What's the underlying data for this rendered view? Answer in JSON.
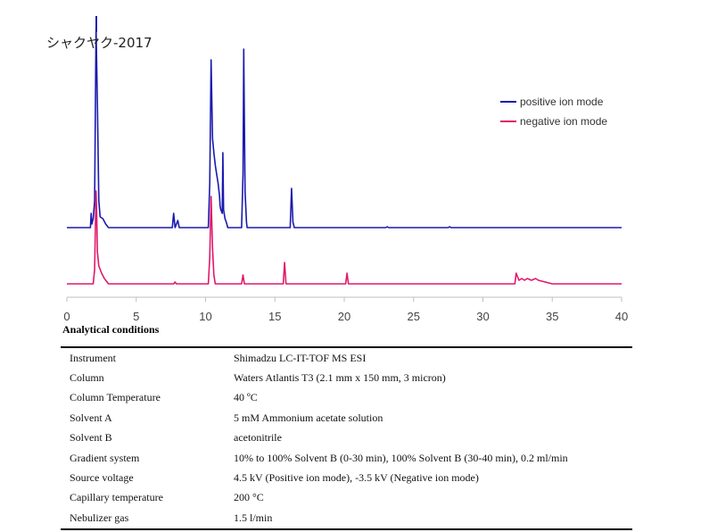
{
  "chart_data": {
    "type": "line",
    "title": "シャクヤク-2017",
    "xlabel": "",
    "ylabel": "",
    "xlim": [
      0,
      40
    ],
    "x_ticks": [
      "0",
      "5",
      "10",
      "15",
      "20",
      "25",
      "30",
      "35",
      "40"
    ],
    "legend_position": "top-right",
    "series": [
      {
        "name": "positive ion mode",
        "color": "#1a1aaf",
        "points": [
          [
            0,
            0
          ],
          [
            1.7,
            0
          ],
          [
            1.75,
            0.08
          ],
          [
            1.8,
            0.02
          ],
          [
            1.9,
            0.05
          ],
          [
            2.0,
            0.15
          ],
          [
            2.1,
            1.12
          ],
          [
            2.2,
            0.7
          ],
          [
            2.3,
            0.15
          ],
          [
            2.4,
            0.06
          ],
          [
            2.6,
            0.05
          ],
          [
            2.8,
            0.02
          ],
          [
            3.0,
            0
          ],
          [
            7.6,
            0
          ],
          [
            7.7,
            0.08
          ],
          [
            7.8,
            0
          ],
          [
            8.0,
            0.04
          ],
          [
            8.1,
            0
          ],
          [
            10.2,
            0
          ],
          [
            10.3,
            0.25
          ],
          [
            10.4,
            0.94
          ],
          [
            10.5,
            0.5
          ],
          [
            10.6,
            0.42
          ],
          [
            10.7,
            0.35
          ],
          [
            10.8,
            0.3
          ],
          [
            10.9,
            0.25
          ],
          [
            11.0,
            0.18
          ],
          [
            11.05,
            0.12
          ],
          [
            11.1,
            0.1
          ],
          [
            11.2,
            0.08
          ],
          [
            11.25,
            0.42
          ],
          [
            11.3,
            0.1
          ],
          [
            11.4,
            0.05
          ],
          [
            11.5,
            0.03
          ],
          [
            11.6,
            0
          ],
          [
            12.6,
            0
          ],
          [
            12.7,
            0.3
          ],
          [
            12.75,
            1.0
          ],
          [
            12.85,
            0.2
          ],
          [
            12.95,
            0.03
          ],
          [
            13.0,
            0
          ],
          [
            16.1,
            0
          ],
          [
            16.2,
            0.22
          ],
          [
            16.3,
            0.03
          ],
          [
            16.4,
            0
          ],
          [
            23.0,
            0
          ],
          [
            23.1,
            0.005
          ],
          [
            23.2,
            0
          ],
          [
            27.5,
            0
          ],
          [
            27.6,
            0.005
          ],
          [
            27.7,
            0
          ],
          [
            40,
            0
          ]
        ]
      },
      {
        "name": "negative ion mode",
        "color": "#e0196b",
        "points": [
          [
            0,
            0
          ],
          [
            1.9,
            0
          ],
          [
            2.0,
            0.08
          ],
          [
            2.1,
            0.52
          ],
          [
            2.15,
            0.4
          ],
          [
            2.2,
            0.18
          ],
          [
            2.3,
            0.1
          ],
          [
            2.5,
            0.06
          ],
          [
            2.7,
            0.03
          ],
          [
            3.0,
            0
          ],
          [
            7.7,
            0
          ],
          [
            7.8,
            0.01
          ],
          [
            7.9,
            0
          ],
          [
            10.2,
            0
          ],
          [
            10.3,
            0.15
          ],
          [
            10.4,
            0.49
          ],
          [
            10.5,
            0.2
          ],
          [
            10.6,
            0.05
          ],
          [
            10.7,
            0
          ],
          [
            12.6,
            0
          ],
          [
            12.7,
            0.05
          ],
          [
            12.8,
            0
          ],
          [
            15.6,
            0
          ],
          [
            15.7,
            0.12
          ],
          [
            15.8,
            0
          ],
          [
            20.1,
            0
          ],
          [
            20.2,
            0.06
          ],
          [
            20.3,
            0
          ],
          [
            32.3,
            0
          ],
          [
            32.4,
            0.06
          ],
          [
            32.6,
            0.02
          ],
          [
            32.8,
            0.03
          ],
          [
            33.0,
            0.02
          ],
          [
            33.2,
            0.03
          ],
          [
            33.5,
            0.02
          ],
          [
            33.8,
            0.03
          ],
          [
            34.0,
            0.02
          ],
          [
            34.5,
            0.01
          ],
          [
            35.0,
            0
          ],
          [
            40,
            0
          ]
        ]
      }
    ]
  },
  "conditions": {
    "heading": "Analytical conditions",
    "rows": [
      {
        "label": "Instrument",
        "value": "Shimadzu LC-IT-TOF MS ESI"
      },
      {
        "label": "Column",
        "value": "Waters Atlantis T3 (2.1 mm x 150 mm, 3 micron)"
      },
      {
        "label": "Column Temperature",
        "value": "40 ºC"
      },
      {
        "label": "Solvent A",
        "value": "5 mM Ammonium acetate solution"
      },
      {
        "label": "Solvent B",
        "value": "acetonitrile"
      },
      {
        "label": "Gradient system",
        "value": "10% to 100% Solvent B (0-30 min), 100% Solvent B (30-40 min), 0.2 ml/min"
      },
      {
        "label": "Source voltage",
        "value": "4.5 kV (Positive ion mode), -3.5 kV (Negative ion mode)"
      },
      {
        "label": "Capillary temperature",
        "value": "200 °C"
      },
      {
        "label": "Nebulizer gas",
        "value": "1.5 l/min"
      }
    ]
  }
}
